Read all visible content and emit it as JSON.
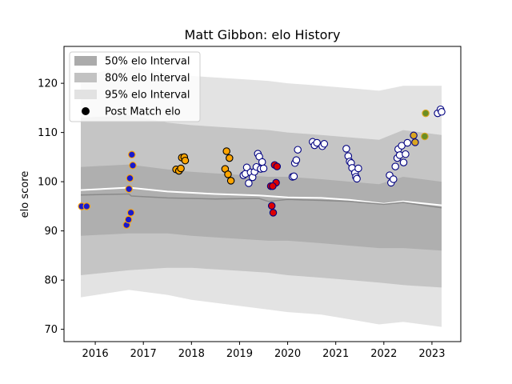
{
  "chart_data": {
    "type": "scatter",
    "title": "Matt Gibbon: elo History",
    "xlabel": "",
    "ylabel": "elo score",
    "xlim": [
      2015.35,
      2023.6
    ],
    "ylim": [
      67.5,
      127.5
    ],
    "x_ticks": [
      2016,
      2017,
      2018,
      2019,
      2020,
      2021,
      2022,
      2023
    ],
    "x_tick_labels": [
      "2016",
      "2017",
      "2018",
      "2019",
      "2020",
      "2021",
      "2022",
      "2023"
    ],
    "y_ticks": [
      70,
      80,
      90,
      100,
      110,
      120
    ],
    "y_tick_labels": [
      "70",
      "80",
      "90",
      "100",
      "110",
      "120"
    ],
    "grid": false,
    "legend_position": "top-left",
    "legend": [
      {
        "label": "50% elo Interval",
        "kind": "patch",
        "color": "#ababab"
      },
      {
        "label": "80% elo Interval",
        "kind": "patch",
        "color": "#c2c2c2"
      },
      {
        "label": "95% elo Interval",
        "kind": "patch",
        "color": "#e2e2e2"
      },
      {
        "label": "Post Match elo",
        "kind": "marker",
        "color": "#000000"
      }
    ],
    "bands": {
      "x": [
        2015.7,
        2016.7,
        2017.5,
        2018.0,
        2018.8,
        2019.6,
        2020.0,
        2020.7,
        2021.3,
        2021.9,
        2022.4,
        2023.2
      ],
      "p95_upper": [
        121.5,
        123.5,
        122.0,
        121.5,
        121.0,
        120.5,
        120.0,
        119.5,
        119.0,
        118.5,
        119.5,
        119.5
      ],
      "p80_upper": [
        113.0,
        113.5,
        112.0,
        111.5,
        111.0,
        110.5,
        110.0,
        109.5,
        109.0,
        108.5,
        110.5,
        109.5
      ],
      "p50_upper": [
        103.0,
        103.5,
        102.5,
        102.0,
        101.5,
        101.0,
        101.0,
        100.5,
        100.0,
        99.5,
        101.0,
        100.0
      ],
      "p50_lower": [
        89.0,
        89.5,
        89.5,
        89.0,
        88.5,
        88.0,
        88.0,
        87.5,
        87.0,
        86.5,
        86.5,
        86.0
      ],
      "p80_lower": [
        81.0,
        82.0,
        82.5,
        82.5,
        82.0,
        81.5,
        81.0,
        80.5,
        80.0,
        79.5,
        79.0,
        78.5
      ],
      "p95_lower": [
        76.5,
        78.0,
        77.0,
        76.0,
        75.0,
        74.0,
        73.5,
        73.0,
        72.0,
        71.0,
        71.5,
        70.5
      ]
    },
    "mean_line": {
      "color": "#ffffff",
      "x": [
        2015.7,
        2016.7,
        2017.5,
        2018.5,
        2019.4,
        2020.0,
        2020.7,
        2021.3,
        2022.0,
        2022.4,
        2023.2
      ],
      "y": [
        98.3,
        98.8,
        98.0,
        97.5,
        97.2,
        96.8,
        96.7,
        96.3,
        95.5,
        96.0,
        95.2
      ]
    },
    "median_line": {
      "color": "#8a8a8a",
      "x": [
        2015.7,
        2016.7,
        2016.75,
        2017.5,
        2018.5,
        2019.4,
        2019.6,
        2020.0,
        2020.7,
        2021.3,
        2022.0,
        2022.4,
        2023.2
      ],
      "y": [
        97.3,
        97.5,
        97.1,
        96.7,
        96.5,
        96.6,
        96.0,
        96.4,
        96.2,
        96.0,
        95.4,
        95.8,
        94.7
      ]
    },
    "points": [
      {
        "x": 2015.72,
        "y": 95.0,
        "fill": "#1a1acd",
        "edge": "#ffa500"
      },
      {
        "x": 2015.82,
        "y": 95.0,
        "fill": "#1a1acd",
        "edge": "#ffa500"
      },
      {
        "x": 2016.65,
        "y": 91.2,
        "fill": "#1a1acd",
        "edge": "#ffa500"
      },
      {
        "x": 2016.69,
        "y": 92.3,
        "fill": "#1a1acd",
        "edge": "#ffa500"
      },
      {
        "x": 2016.7,
        "y": 98.5,
        "fill": "#1a1acd",
        "edge": "#ffa500"
      },
      {
        "x": 2016.72,
        "y": 100.7,
        "fill": "#1a1acd",
        "edge": "#ffa500"
      },
      {
        "x": 2016.74,
        "y": 93.7,
        "fill": "#1a1acd",
        "edge": "#ffa500"
      },
      {
        "x": 2016.76,
        "y": 105.5,
        "fill": "#1a1acd",
        "edge": "#ffa500"
      },
      {
        "x": 2016.78,
        "y": 103.3,
        "fill": "#1a1acd",
        "edge": "#ffa500"
      },
      {
        "x": 2017.68,
        "y": 102.5,
        "fill": "#ffa500",
        "edge": "#000000"
      },
      {
        "x": 2017.74,
        "y": 102.2,
        "fill": "#ffa500",
        "edge": "#000000"
      },
      {
        "x": 2017.78,
        "y": 102.7,
        "fill": "#ffa500",
        "edge": "#000000"
      },
      {
        "x": 2017.8,
        "y": 104.9,
        "fill": "#ffa500",
        "edge": "#000000"
      },
      {
        "x": 2017.85,
        "y": 105.0,
        "fill": "#ffa500",
        "edge": "#000000"
      },
      {
        "x": 2017.87,
        "y": 104.3,
        "fill": "#ffa500",
        "edge": "#000000"
      },
      {
        "x": 2018.7,
        "y": 102.6,
        "fill": "#ffa500",
        "edge": "#000000"
      },
      {
        "x": 2018.73,
        "y": 106.2,
        "fill": "#ffa500",
        "edge": "#000000"
      },
      {
        "x": 2018.76,
        "y": 101.5,
        "fill": "#ffa500",
        "edge": "#000000"
      },
      {
        "x": 2018.79,
        "y": 104.8,
        "fill": "#ffa500",
        "edge": "#000000"
      },
      {
        "x": 2018.82,
        "y": 100.2,
        "fill": "#ffa500",
        "edge": "#000000"
      },
      {
        "x": 2019.08,
        "y": 101.3,
        "fill": "#ffffff",
        "edge": "#000080"
      },
      {
        "x": 2019.12,
        "y": 101.6,
        "fill": "#ffffff",
        "edge": "#000080"
      },
      {
        "x": 2019.15,
        "y": 102.9,
        "fill": "#ffffff",
        "edge": "#000080"
      },
      {
        "x": 2019.19,
        "y": 99.7,
        "fill": "#ffffff",
        "edge": "#000080"
      },
      {
        "x": 2019.23,
        "y": 101.9,
        "fill": "#ffffff",
        "edge": "#000080"
      },
      {
        "x": 2019.27,
        "y": 100.9,
        "fill": "#ffffff",
        "edge": "#000080"
      },
      {
        "x": 2019.31,
        "y": 102.0,
        "fill": "#ffffff",
        "edge": "#000080"
      },
      {
        "x": 2019.35,
        "y": 103.0,
        "fill": "#ffffff",
        "edge": "#000080"
      },
      {
        "x": 2019.38,
        "y": 105.7,
        "fill": "#ffffff",
        "edge": "#000080"
      },
      {
        "x": 2019.41,
        "y": 105.1,
        "fill": "#ffffff",
        "edge": "#000080"
      },
      {
        "x": 2019.44,
        "y": 102.6,
        "fill": "#ffffff",
        "edge": "#000080"
      },
      {
        "x": 2019.47,
        "y": 104.0,
        "fill": "#ffffff",
        "edge": "#000080"
      },
      {
        "x": 2019.5,
        "y": 102.7,
        "fill": "#ffffff",
        "edge": "#000080"
      },
      {
        "x": 2019.65,
        "y": 99.1,
        "fill": "#dd0000",
        "edge": "#000080"
      },
      {
        "x": 2019.67,
        "y": 95.1,
        "fill": "#dd0000",
        "edge": "#000080"
      },
      {
        "x": 2019.7,
        "y": 93.7,
        "fill": "#dd0000",
        "edge": "#000080"
      },
      {
        "x": 2019.73,
        "y": 103.4,
        "fill": "#dd0000",
        "edge": "#000080"
      },
      {
        "x": 2019.76,
        "y": 99.8,
        "fill": "#dd0000",
        "edge": "#000080"
      },
      {
        "x": 2019.78,
        "y": 103.1,
        "fill": "#dd0000",
        "edge": "#000080"
      },
      {
        "x": 2019.69,
        "y": 99.1,
        "fill": "#dd0000",
        "edge": "#000080"
      },
      {
        "x": 2020.1,
        "y": 101.0,
        "fill": "#ffffff",
        "edge": "#000080"
      },
      {
        "x": 2020.13,
        "y": 101.1,
        "fill": "#ffffff",
        "edge": "#000080"
      },
      {
        "x": 2020.15,
        "y": 103.8,
        "fill": "#ffffff",
        "edge": "#000080"
      },
      {
        "x": 2020.18,
        "y": 104.4,
        "fill": "#ffffff",
        "edge": "#000080"
      },
      {
        "x": 2020.21,
        "y": 106.5,
        "fill": "#ffffff",
        "edge": "#000080"
      },
      {
        "x": 2020.52,
        "y": 108.1,
        "fill": "#ffffff",
        "edge": "#000080"
      },
      {
        "x": 2020.56,
        "y": 107.4,
        "fill": "#ffffff",
        "edge": "#000080"
      },
      {
        "x": 2020.61,
        "y": 107.9,
        "fill": "#ffffff",
        "edge": "#000080"
      },
      {
        "x": 2020.72,
        "y": 107.2,
        "fill": "#ffffff",
        "edge": "#000080"
      },
      {
        "x": 2020.76,
        "y": 107.7,
        "fill": "#ffffff",
        "edge": "#000080"
      },
      {
        "x": 2021.22,
        "y": 106.7,
        "fill": "#ffffff",
        "edge": "#000080"
      },
      {
        "x": 2021.26,
        "y": 105.2,
        "fill": "#ffffff",
        "edge": "#000080"
      },
      {
        "x": 2021.29,
        "y": 104.1,
        "fill": "#ffffff",
        "edge": "#000080"
      },
      {
        "x": 2021.32,
        "y": 103.8,
        "fill": "#ffffff",
        "edge": "#000080"
      },
      {
        "x": 2021.34,
        "y": 102.8,
        "fill": "#ffffff",
        "edge": "#000080"
      },
      {
        "x": 2021.4,
        "y": 101.8,
        "fill": "#ffffff",
        "edge": "#000080"
      },
      {
        "x": 2021.42,
        "y": 101.0,
        "fill": "#ffffff",
        "edge": "#000080"
      },
      {
        "x": 2021.44,
        "y": 100.6,
        "fill": "#ffffff",
        "edge": "#000080"
      },
      {
        "x": 2021.47,
        "y": 102.7,
        "fill": "#ffffff",
        "edge": "#000080"
      },
      {
        "x": 2022.12,
        "y": 101.3,
        "fill": "#ffffff",
        "edge": "#000080"
      },
      {
        "x": 2022.15,
        "y": 99.8,
        "fill": "#ffffff",
        "edge": "#000080"
      },
      {
        "x": 2022.2,
        "y": 100.5,
        "fill": "#ffffff",
        "edge": "#000080"
      },
      {
        "x": 2022.24,
        "y": 103.1,
        "fill": "#ffffff",
        "edge": "#000080"
      },
      {
        "x": 2022.28,
        "y": 104.8,
        "fill": "#ffffff",
        "edge": "#000080"
      },
      {
        "x": 2022.3,
        "y": 106.6,
        "fill": "#ffffff",
        "edge": "#000080"
      },
      {
        "x": 2022.33,
        "y": 105.4,
        "fill": "#ffffff",
        "edge": "#000080"
      },
      {
        "x": 2022.37,
        "y": 107.3,
        "fill": "#ffffff",
        "edge": "#000080"
      },
      {
        "x": 2022.41,
        "y": 103.9,
        "fill": "#ffffff",
        "edge": "#000080"
      },
      {
        "x": 2022.45,
        "y": 105.6,
        "fill": "#ffffff",
        "edge": "#000080"
      },
      {
        "x": 2022.49,
        "y": 107.9,
        "fill": "#ffffff",
        "edge": "#000080"
      },
      {
        "x": 2022.62,
        "y": 109.4,
        "fill": "#daa520",
        "edge": "#000080"
      },
      {
        "x": 2022.65,
        "y": 108.0,
        "fill": "#daa520",
        "edge": "#000080"
      },
      {
        "x": 2022.85,
        "y": 109.2,
        "fill": "#6b8e23",
        "edge": "#daa520"
      },
      {
        "x": 2022.87,
        "y": 113.9,
        "fill": "#6b8e23",
        "edge": "#daa520"
      },
      {
        "x": 2023.12,
        "y": 113.9,
        "fill": "#ffffff",
        "edge": "#000080"
      },
      {
        "x": 2023.18,
        "y": 114.7,
        "fill": "#ffffff",
        "edge": "#000080"
      },
      {
        "x": 2023.2,
        "y": 114.2,
        "fill": "#ffffff",
        "edge": "#000080"
      }
    ]
  }
}
